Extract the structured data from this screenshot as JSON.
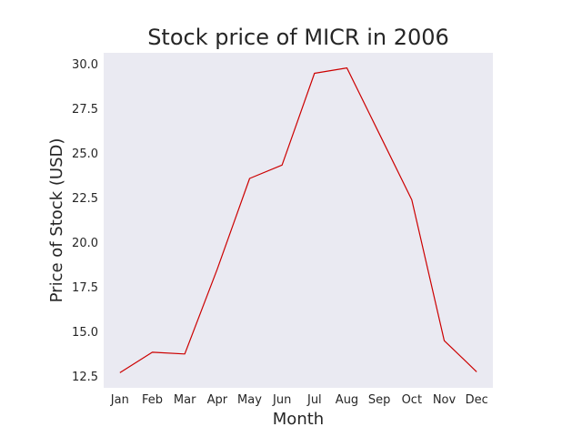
{
  "chart_data": {
    "type": "line",
    "title": "Stock price of MICR in 2006",
    "xlabel": "Month",
    "ylabel": "Price of Stock (USD)",
    "categories": [
      "Jan",
      "Feb",
      "Mar",
      "Apr",
      "May",
      "Jun",
      "Jul",
      "Aug",
      "Sep",
      "Oct",
      "Nov",
      "Dec"
    ],
    "series": [
      {
        "values": [
          12.7,
          13.85,
          13.75,
          18.5,
          23.6,
          24.35,
          29.5,
          29.8,
          26.1,
          22.4,
          14.5,
          12.75
        ],
        "color": "#cc0000"
      }
    ],
    "ylim": [
      11.85,
      30.65
    ],
    "yticks": [
      12.5,
      15.0,
      17.5,
      20.0,
      22.5,
      25.0,
      27.5,
      30.0
    ],
    "ytick_labels": [
      "12.5",
      "15.0",
      "17.5",
      "20.0",
      "22.5",
      "25.0",
      "27.5",
      "30.0"
    ],
    "grid": false,
    "background": "#eaeaf2"
  }
}
